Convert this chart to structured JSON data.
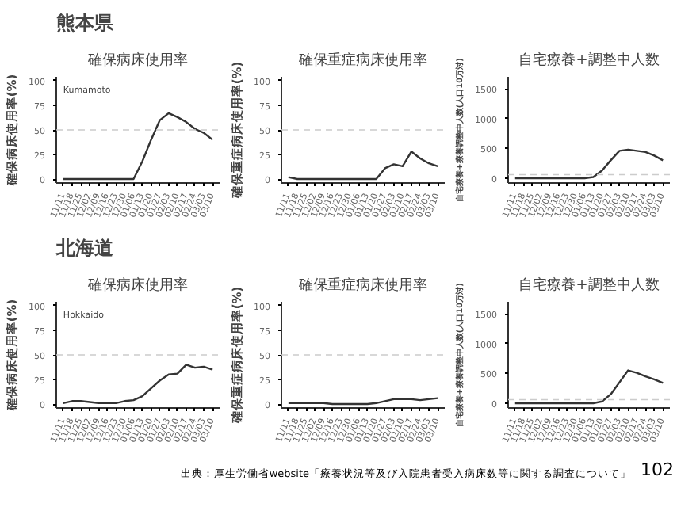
{
  "chart_data": [
    {
      "type": "line",
      "subtitle": "熊本県",
      "title": "確保病床使用率",
      "ylabel": "確保病床使用率(%)",
      "categories": [
        "11/11",
        "11/18",
        "11/25",
        "12/02",
        "12/09",
        "12/16",
        "12/23",
        "12/30",
        "01/06",
        "01/13",
        "01/20",
        "01/27",
        "02/03",
        "02/10",
        "02/17",
        "02/24",
        "03/03",
        "03/10"
      ],
      "series": [
        {
          "color": "#333333",
          "values": [
            0,
            0,
            0,
            0,
            0,
            0,
            0,
            0,
            0,
            18,
            40,
            60,
            67,
            63,
            58,
            51,
            47,
            40
          ]
        }
      ],
      "ylim": [
        -4,
        104
      ],
      "yticks": [
        0,
        25,
        50,
        75,
        100
      ],
      "ref_lines": [
        {
          "axis": "y",
          "value": 50,
          "color": "#cccccc",
          "line_style": "dashed"
        }
      ],
      "annotations": [
        "Kumamoto"
      ],
      "grid": false
    },
    {
      "type": "line",
      "title": "確保重症病床使用率",
      "ylabel": "確保重症病床使用率(%)",
      "categories": [
        "11/11",
        "11/18",
        "11/25",
        "12/02",
        "12/09",
        "12/16",
        "12/23",
        "12/30",
        "01/06",
        "01/13",
        "01/20",
        "01/27",
        "02/03",
        "02/10",
        "02/17",
        "02/24",
        "03/03",
        "03/10"
      ],
      "series": [
        {
          "color": "#333333",
          "values": [
            2,
            0,
            0,
            0,
            0,
            0,
            0,
            0,
            0,
            0,
            0,
            11,
            15,
            13,
            28,
            21,
            16,
            13
          ]
        }
      ],
      "ylim": [
        -4,
        104
      ],
      "yticks": [
        0,
        25,
        50,
        75,
        100
      ],
      "ref_lines": [
        {
          "axis": "y",
          "value": 50,
          "color": "#cccccc",
          "line_style": "dashed"
        }
      ],
      "grid": false
    },
    {
      "type": "line",
      "title": "自宅療養+調整中人数",
      "ylabel": "自宅療養+療養調整中人数(人口10万対)",
      "categories": [
        "11/11",
        "11/18",
        "11/25",
        "12/02",
        "12/09",
        "12/16",
        "12/23",
        "12/30",
        "01/06",
        "01/13",
        "01/20",
        "01/27",
        "02/03",
        "02/10",
        "02/17",
        "02/24",
        "03/03",
        "03/10"
      ],
      "series": [
        {
          "color": "#333333",
          "values": [
            0,
            0,
            0,
            0,
            0,
            0,
            0,
            0,
            0,
            20,
            130,
            300,
            460,
            480,
            460,
            440,
            380,
            300
          ]
        }
      ],
      "ylim": [
        -80,
        1700
      ],
      "yticks": [
        0,
        500,
        1000,
        1500
      ],
      "ref_lines": [
        {
          "axis": "y",
          "value": 60,
          "color": "#cccccc",
          "line_style": "dashed"
        }
      ],
      "grid": false
    },
    {
      "type": "line",
      "subtitle": "北海道",
      "title": "確保病床使用率",
      "ylabel": "確保病床使用率(%)",
      "categories": [
        "11/11",
        "11/18",
        "11/25",
        "12/02",
        "12/09",
        "12/16",
        "12/23",
        "12/30",
        "01/06",
        "01/13",
        "01/20",
        "01/27",
        "02/03",
        "02/10",
        "02/17",
        "02/24",
        "03/03",
        "03/10"
      ],
      "series": [
        {
          "color": "#333333",
          "values": [
            1,
            3,
            3,
            2,
            1,
            1,
            1,
            3,
            4,
            8,
            16,
            24,
            30,
            31,
            40,
            37,
            38,
            35
          ]
        }
      ],
      "ylim": [
        -4,
        104
      ],
      "yticks": [
        0,
        25,
        50,
        75,
        100
      ],
      "ref_lines": [
        {
          "axis": "y",
          "value": 50,
          "color": "#cccccc",
          "line_style": "dashed"
        }
      ],
      "annotations": [
        "Hokkaido"
      ],
      "grid": false
    },
    {
      "type": "line",
      "title": "確保重症病床使用率",
      "ylabel": "確保重症病床使用率(%)",
      "categories": [
        "11/11",
        "11/18",
        "11/25",
        "12/02",
        "12/09",
        "12/16",
        "12/23",
        "12/30",
        "01/06",
        "01/13",
        "01/20",
        "01/27",
        "02/03",
        "02/10",
        "02/17",
        "02/24",
        "03/03",
        "03/10"
      ],
      "series": [
        {
          "color": "#333333",
          "values": [
            1,
            1,
            1,
            1,
            1,
            0,
            0,
            0,
            0,
            0,
            1,
            3,
            5,
            5,
            5,
            4,
            5,
            6
          ]
        }
      ],
      "ylim": [
        -4,
        104
      ],
      "yticks": [
        0,
        25,
        50,
        75,
        100
      ],
      "ref_lines": [
        {
          "axis": "y",
          "value": 50,
          "color": "#cccccc",
          "line_style": "dashed"
        }
      ],
      "grid": false
    },
    {
      "type": "line",
      "title": "自宅療養+調整中人数",
      "ylabel": "自宅療養+療養調整中人数(人口10万対)",
      "categories": [
        "11/11",
        "11/18",
        "11/25",
        "12/02",
        "12/09",
        "12/16",
        "12/23",
        "12/30",
        "01/06",
        "01/13",
        "01/20",
        "01/27",
        "02/03",
        "02/10",
        "02/17",
        "02/24",
        "03/03",
        "03/10"
      ],
      "series": [
        {
          "color": "#333333",
          "values": [
            0,
            0,
            0,
            0,
            0,
            0,
            0,
            0,
            0,
            0,
            30,
            150,
            350,
            550,
            510,
            450,
            400,
            340
          ]
        }
      ],
      "ylim": [
        -80,
        1700
      ],
      "yticks": [
        0,
        500,
        1000,
        1500
      ],
      "ref_lines": [
        {
          "axis": "y",
          "value": 60,
          "color": "#cccccc",
          "line_style": "dashed"
        }
      ],
      "annotations": [
        "出典：厚生労働省website「療養状況等及び入院患者受入病床数等に関する調査について」",
        "102"
      ],
      "grid": false
    }
  ]
}
